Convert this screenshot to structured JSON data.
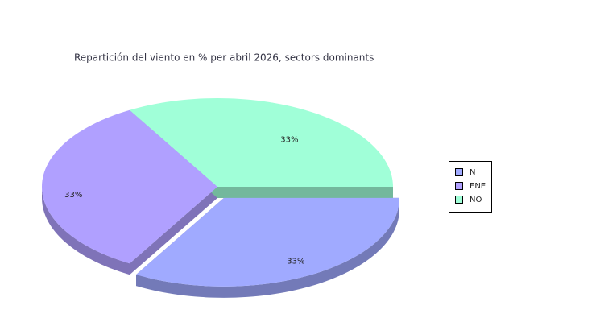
{
  "chart_data": {
    "type": "pie",
    "title": "Repartición del viento en % per abril 2026, sectors dominants",
    "categories": [
      "N",
      "ENE",
      "NO"
    ],
    "values": [
      33,
      33,
      33
    ],
    "value_labels": [
      "33%",
      "33%",
      "33%"
    ],
    "colors": [
      "#a0aaff",
      "#b0a0ff",
      "#a0ffd8"
    ],
    "explode": [
      true,
      false,
      false
    ],
    "legend": "right"
  }
}
